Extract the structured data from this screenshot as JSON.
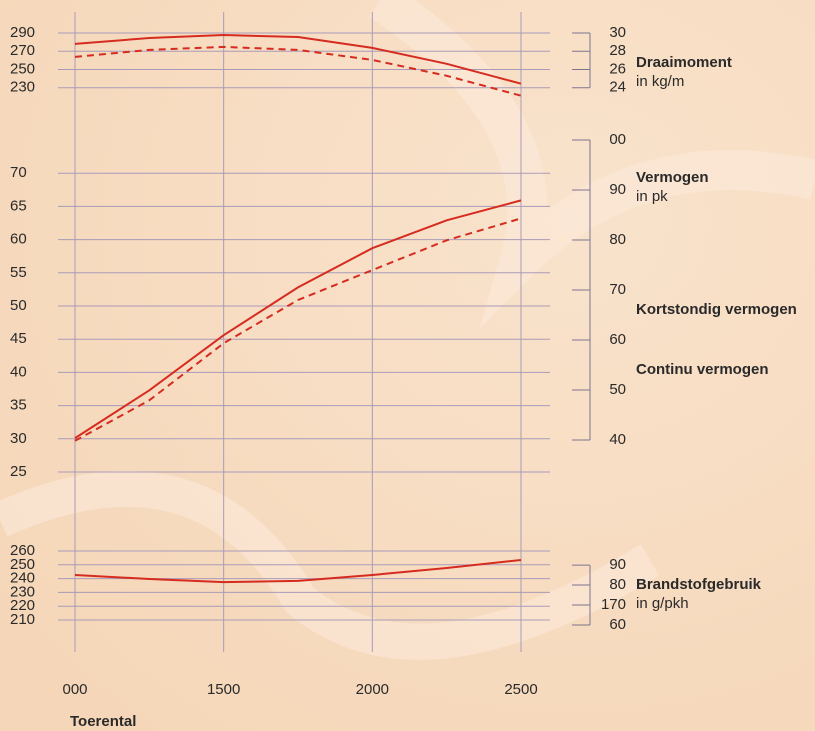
{
  "chart_data": [
    {
      "type": "line",
      "title": "Draaimoment",
      "subtitle": "in kg/m",
      "x": [
        1000,
        1250,
        1500,
        1750,
        2000,
        2250,
        2500
      ],
      "series": [
        {
          "color": "#d62b1f",
          "style": "solid",
          "values": [
            278,
            284.5,
            287.8,
            285.6,
            273.6,
            256.2,
            234.4
          ]
        },
        {
          "color": "#d62b1f",
          "style": "dashed",
          "values": [
            263.8,
            271.5,
            274.7,
            271.5,
            260.5,
            243.1,
            221.3
          ]
        }
      ],
      "ylim": [
        210,
        310
      ],
      "yticks": [
        290,
        270,
        250,
        230
      ],
      "y2lim": [
        22,
        32
      ],
      "y2ticks": [
        30,
        28,
        26,
        24
      ],
      "grid": true
    },
    {
      "type": "line",
      "title": "Vermogen",
      "subtitle": "in pk",
      "x": [
        1000,
        1250,
        1500,
        1750,
        2000,
        2250,
        2500
      ],
      "series": [
        {
          "name": "Kortstondig vermogen",
          "color": "#d62b1f",
          "style": "solid",
          "values": [
            30.1,
            37.3,
            45.6,
            52.8,
            58.7,
            62.9,
            65.9
          ]
        },
        {
          "name": "Continu vermogen",
          "color": "#d62b1f",
          "style": "dashed",
          "values": [
            29.7,
            35.8,
            44.4,
            50.9,
            55.4,
            59.9,
            63.2
          ]
        }
      ],
      "ylim": [
        25,
        75
      ],
      "yticks": [
        70,
        65,
        60,
        55,
        50,
        45,
        40,
        35,
        30,
        25
      ],
      "y2lim": [
        33.6,
        100
      ],
      "y2ticks": [
        {
          "value": 100,
          "label": "00"
        },
        90,
        80,
        70,
        60,
        50,
        40
      ],
      "grid": true
    },
    {
      "type": "line",
      "title": "Brandstofgebruik",
      "subtitle": "in g/pkh",
      "x": [
        1000,
        1250,
        1500,
        1750,
        2000,
        2250,
        2500
      ],
      "series": [
        {
          "color": "#d62b1f",
          "style": "solid",
          "values": [
            242.6,
            239.7,
            237.5,
            238.3,
            242.6,
            247.7,
            253.5
          ]
        }
      ],
      "ylim": [
        190,
        265
      ],
      "yticks": [
        260,
        250,
        240,
        230,
        220,
        210
      ],
      "y2lim": [
        148.7,
        200.5
      ],
      "y2ticks": [
        {
          "value": 190,
          "label": "90"
        },
        {
          "value": 180,
          "label": "80"
        },
        170,
        {
          "value": 160,
          "label": "60"
        }
      ],
      "xlim": [
        1000,
        2500
      ],
      "xticks": [
        {
          "value": 1000,
          "label": "000"
        },
        1500,
        2000,
        2500
      ],
      "xlabel": "Toerental",
      "grid": true
    }
  ]
}
